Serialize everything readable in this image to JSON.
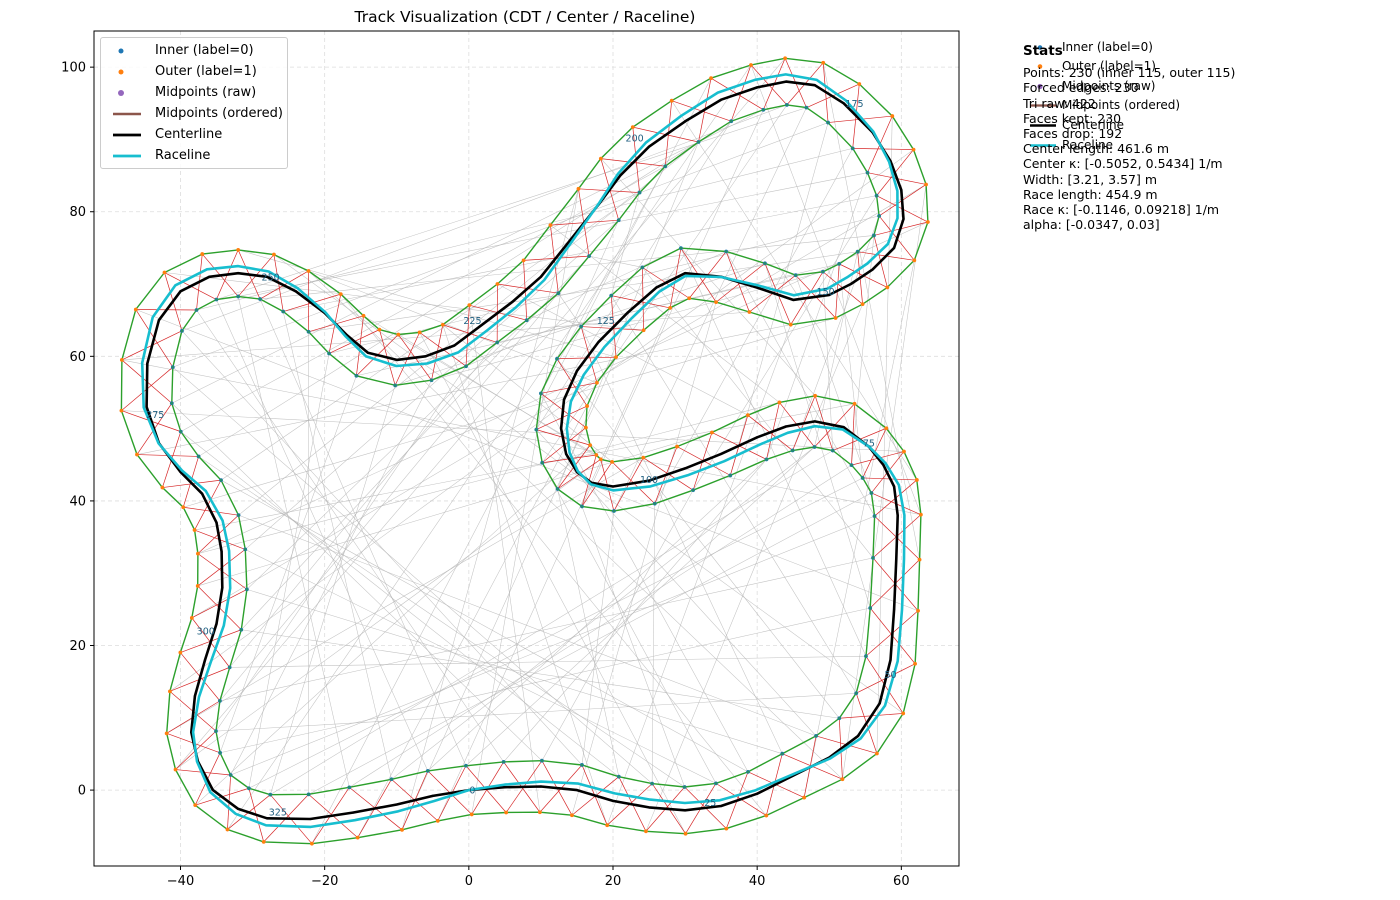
{
  "chart_data": {
    "type": "line",
    "title": "Track Visualization (CDT / Center / Raceline)",
    "xlabel": "",
    "ylabel": "",
    "xlim": [
      -52,
      68
    ],
    "ylim": [
      -10.5,
      105
    ],
    "xticks": [
      -40,
      -20,
      0,
      20,
      40,
      60
    ],
    "yticks": [
      0,
      20,
      40,
      60,
      80,
      100
    ],
    "grid": true,
    "legend": {
      "placement": "upper-left",
      "entries": [
        {
          "label": "Inner (label=0)",
          "kind": "point",
          "color": "#1f77b4"
        },
        {
          "label": "Outer (label=1)",
          "kind": "point",
          "color": "#ff7f0e"
        },
        {
          "label": "Midpoints (raw)",
          "kind": "point",
          "color": "#9467bd"
        },
        {
          "label": "Midpoints (ordered)",
          "kind": "line",
          "color": "#8c564b"
        },
        {
          "label": "Centerline",
          "kind": "line",
          "color": "#000000"
        },
        {
          "label": "Raceline",
          "kind": "line",
          "color": "#17becf"
        }
      ]
    },
    "legend_outside": {
      "placement": "right",
      "entries": [
        {
          "label": "Inner (label=0)",
          "kind": "point",
          "color": "#1f77b4"
        },
        {
          "label": "Outer (label=1)",
          "kind": "point",
          "color": "#ff7f0e"
        },
        {
          "label": "Midpoints (raw)",
          "kind": "point",
          "color": "#9467bd"
        },
        {
          "label": "Midpoints (ordered)",
          "kind": "line",
          "color": "#8c564b"
        },
        {
          "label": "Centerline",
          "kind": "line",
          "color": "#000000"
        },
        {
          "label": "Raceline",
          "kind": "line",
          "color": "#17becf"
        }
      ]
    },
    "centerline": [
      [
        0,
        0
      ],
      [
        5,
        0.4
      ],
      [
        10,
        0.5
      ],
      [
        15,
        0.0
      ],
      [
        20,
        -1.5
      ],
      [
        25,
        -2.4
      ],
      [
        30,
        -2.8
      ],
      [
        35,
        -2.2
      ],
      [
        40,
        -0.5
      ],
      [
        45,
        2.0
      ],
      [
        50,
        4.5
      ],
      [
        54,
        7.5
      ],
      [
        57,
        12
      ],
      [
        58.5,
        18
      ],
      [
        59,
        25
      ],
      [
        59.3,
        32
      ],
      [
        59.5,
        38
      ],
      [
        59,
        42
      ],
      [
        57.5,
        45
      ],
      [
        55.5,
        47.5
      ],
      [
        52,
        50.2
      ],
      [
        48,
        51
      ],
      [
        44,
        50.3
      ],
      [
        40,
        48.8
      ],
      [
        35,
        46.5
      ],
      [
        30,
        44.5
      ],
      [
        25,
        42.8
      ],
      [
        20,
        42.0
      ],
      [
        17,
        42.5
      ],
      [
        15,
        44
      ],
      [
        13.5,
        46.5
      ],
      [
        12.8,
        50
      ],
      [
        13.2,
        54
      ],
      [
        15,
        58
      ],
      [
        18,
        62
      ],
      [
        22,
        66
      ],
      [
        26,
        69.5
      ],
      [
        30,
        71.5
      ],
      [
        35,
        71
      ],
      [
        40,
        69.5
      ],
      [
        45,
        67.8
      ],
      [
        50,
        68.5
      ],
      [
        53,
        70
      ],
      [
        56,
        72
      ],
      [
        59,
        75
      ],
      [
        60.3,
        79
      ],
      [
        60,
        83
      ],
      [
        58.5,
        87
      ],
      [
        56,
        91
      ],
      [
        52,
        95
      ],
      [
        48,
        97.5
      ],
      [
        44,
        98
      ],
      [
        40,
        97.2
      ],
      [
        35,
        95.5
      ],
      [
        30,
        92.5
      ],
      [
        25,
        89
      ],
      [
        21,
        85
      ],
      [
        18,
        81
      ],
      [
        14,
        76
      ],
      [
        10,
        71
      ],
      [
        6,
        67.5
      ],
      [
        2,
        64.5
      ],
      [
        -2,
        61.5
      ],
      [
        -6,
        60
      ],
      [
        -10,
        59.5
      ],
      [
        -14,
        60.5
      ],
      [
        -17,
        63
      ],
      [
        -20,
        66
      ],
      [
        -24,
        69
      ],
      [
        -28,
        71
      ],
      [
        -32,
        71.5
      ],
      [
        -36,
        71
      ],
      [
        -40,
        69
      ],
      [
        -43,
        65
      ],
      [
        -44.6,
        59
      ],
      [
        -44.7,
        53
      ],
      [
        -43,
        48
      ],
      [
        -40,
        44
      ],
      [
        -37,
        41
      ],
      [
        -35,
        37
      ],
      [
        -34.3,
        33
      ],
      [
        -34.2,
        28
      ],
      [
        -35,
        23
      ],
      [
        -36.6,
        18
      ],
      [
        -38,
        13
      ],
      [
        -38.5,
        8
      ],
      [
        -37.6,
        4
      ],
      [
        -35.5,
        0
      ],
      [
        -32,
        -2.6
      ],
      [
        -28,
        -3.9
      ],
      [
        -22,
        -4.0
      ],
      [
        -16,
        -3.1
      ],
      [
        -10,
        -2.0
      ],
      [
        -5,
        -0.8
      ],
      [
        0,
        0
      ]
    ],
    "track_half_width": [
      3.21,
      3.57
    ],
    "index_labels": [
      {
        "text": "0",
        "x": 0.5,
        "y": -0.5
      },
      {
        "text": "25",
        "x": 33.5,
        "y": -2.2
      },
      {
        "text": "50",
        "x": 58.5,
        "y": 15.5
      },
      {
        "text": "75",
        "x": 55.5,
        "y": 47.5
      },
      {
        "text": "100",
        "x": 25,
        "y": 42.5
      },
      {
        "text": "125",
        "x": 19,
        "y": 64.5
      },
      {
        "text": "150",
        "x": 49.5,
        "y": 68.5
      },
      {
        "text": "175",
        "x": 53.5,
        "y": 94.5
      },
      {
        "text": "200",
        "x": 23,
        "y": 89.7
      },
      {
        "text": "225",
        "x": 0.5,
        "y": 64.5
      },
      {
        "text": "250",
        "x": -27.5,
        "y": 70.5
      },
      {
        "text": "275",
        "x": -43.5,
        "y": 51.5
      },
      {
        "text": "300",
        "x": -36.5,
        "y": 21.5
      },
      {
        "text": "325",
        "x": -26.5,
        "y": -3.5
      }
    ]
  },
  "stats": {
    "title": "Stats",
    "lines": [
      "Points: 230 (inner 115, outer 115)",
      "Forced edges: 230",
      "Tri raw: 422",
      "Faces kept: 230",
      "Faces drop: 192",
      "Center length: 461.6 m",
      "Center κ: [-0.5052, 0.5434] 1/m",
      "Width: [3.21, 3.57] m",
      "Race length: 454.9 m",
      "Race κ: [-0.1146, 0.09218] 1/m",
      "alpha: [-0.0347, 0.03]"
    ]
  }
}
